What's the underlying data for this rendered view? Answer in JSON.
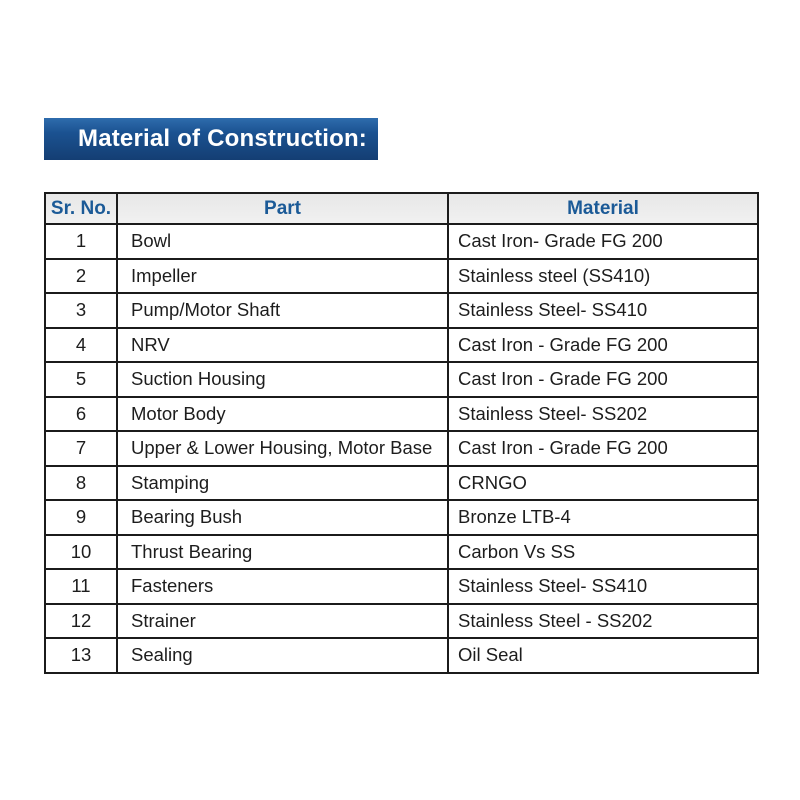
{
  "banner": {
    "title": "Material of Construction:"
  },
  "table": {
    "columns": [
      "Sr. No.",
      "Part",
      "Material"
    ],
    "rows": [
      {
        "sr": "1",
        "part": "Bowl",
        "material": "Cast Iron- Grade FG 200"
      },
      {
        "sr": "2",
        "part": "Impeller",
        "material": "Stainless steel (SS410)"
      },
      {
        "sr": "3",
        "part": "Pump/Motor Shaft",
        "material": "Stainless Steel- SS410"
      },
      {
        "sr": "4",
        "part": "NRV",
        "material": "Cast Iron - Grade FG 200"
      },
      {
        "sr": "5",
        "part": "Suction Housing",
        "material": "Cast Iron - Grade FG 200"
      },
      {
        "sr": "6",
        "part": "Motor Body",
        "material": "Stainless Steel- SS202"
      },
      {
        "sr": "7",
        "part": "Upper & Lower Housing, Motor Base",
        "material": "Cast Iron - Grade FG 200"
      },
      {
        "sr": "8",
        "part": "Stamping",
        "material": "CRNGO"
      },
      {
        "sr": "9",
        "part": "Bearing Bush",
        "material": "Bronze LTB-4"
      },
      {
        "sr": "10",
        "part": "Thrust Bearing",
        "material": "Carbon Vs SS"
      },
      {
        "sr": "11",
        "part": "Fasteners",
        "material": "Stainless Steel- SS410"
      },
      {
        "sr": "12",
        "part": "Strainer",
        "material": "Stainless Steel - SS202"
      },
      {
        "sr": "13",
        "part": "Sealing",
        "material": "Oil Seal"
      }
    ]
  },
  "colors": {
    "banner_blue_top": "#2e6cad",
    "banner_blue_bottom": "#143e73",
    "banner_text": "#ffffff",
    "header_bg": "#ececec",
    "header_text_blue": "#1b5a97",
    "table_border": "#1b1b1b",
    "body_text": "#1d1d1d",
    "page_background": "#ffffff"
  }
}
